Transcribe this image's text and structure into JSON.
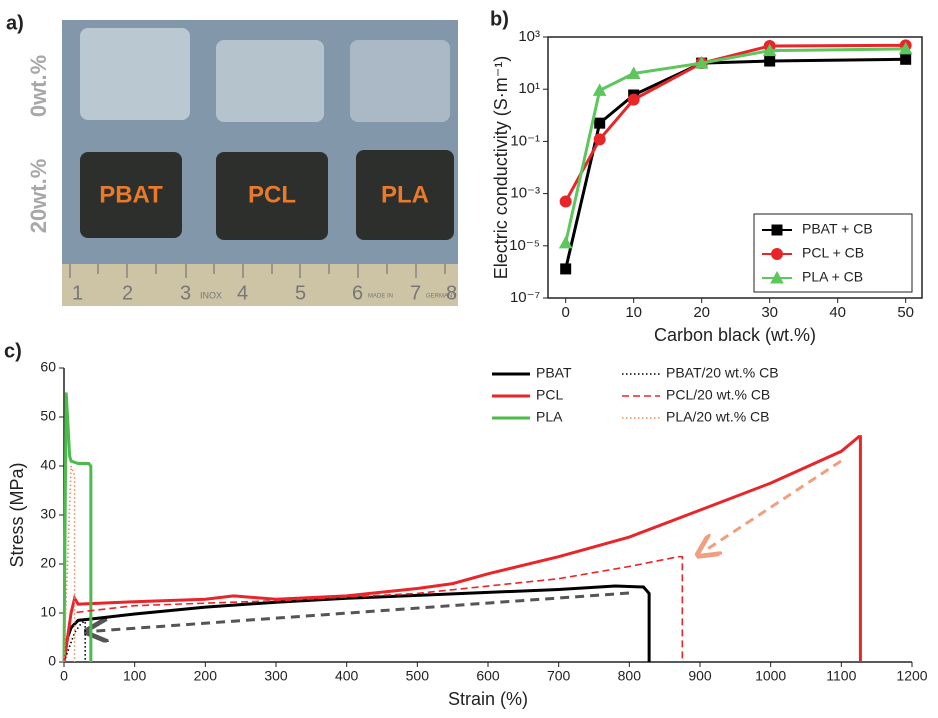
{
  "photo": {
    "label": "a)",
    "row_labels": [
      "0wt.%",
      "20wt.%"
    ],
    "sample_labels": [
      "PBAT",
      "PCL",
      "PLA"
    ],
    "ruler_labels": [
      "1",
      "2",
      "3",
      "4",
      "5",
      "6",
      "7",
      "8"
    ],
    "ruler_marks": [
      "INOX",
      "MADE IN",
      "GERMANY"
    ]
  },
  "chart_data": [
    {
      "type": "line",
      "panel_label": "b)",
      "x_label": "Carbon black (wt.%)",
      "y_label": "Electric conductivity (S·m⁻¹)",
      "log_y": true,
      "legend": "lower right",
      "frame": true,
      "x": [
        0,
        5,
        10,
        20,
        30,
        50
      ],
      "xlim": [
        -2.6,
        52.4
      ],
      "xticks": [
        0,
        10,
        20,
        30,
        40,
        50
      ],
      "ylim": [
        1e-07,
        1000
      ],
      "yticks": [
        {
          "value": 1e-07,
          "label": "10⁻⁷"
        },
        {
          "value": 1e-05,
          "label": "10⁻⁵"
        },
        {
          "value": 0.001,
          "label": "10⁻³"
        },
        {
          "value": 0.1,
          "label": "10⁻¹"
        },
        {
          "value": 10,
          "label": "10¹"
        },
        {
          "value": 1000,
          "label": "10³"
        }
      ],
      "series": [
        {
          "name": "PBAT + CB",
          "color": "#000000",
          "marker": "square",
          "values": [
            1.3e-06,
            0.5,
            6,
            100,
            120,
            140
          ]
        },
        {
          "name": "PCL + CB",
          "color": "#e8262a",
          "marker": "circle",
          "values": [
            0.0005,
            0.12,
            4,
            100,
            450,
            480
          ]
        },
        {
          "name": "PLA + CB",
          "color": "#5dc65d",
          "marker": "triangle",
          "values": [
            1.3e-05,
            9,
            40,
            100,
            300,
            350
          ]
        }
      ]
    },
    {
      "type": "line",
      "panel_label": "c)",
      "x_label": "Strain (%)",
      "y_label": "Stress (MPa)",
      "log_y": false,
      "legend": "upper right",
      "frame": false,
      "xlim": [
        0,
        1200
      ],
      "xticks": [
        0,
        100,
        200,
        300,
        400,
        500,
        600,
        700,
        800,
        900,
        1000,
        1100,
        1200
      ],
      "ylim": [
        0,
        60
      ],
      "yticks": [
        0,
        10,
        20,
        30,
        40,
        50,
        60
      ],
      "series": [
        {
          "name": "PBAT",
          "color": "#000000",
          "dash": "solid",
          "x": [
            0,
            5,
            10,
            20,
            40,
            100,
            200,
            300,
            400,
            500,
            600,
            700,
            780,
            820,
            828,
            828
          ],
          "values": [
            0,
            5,
            7,
            8.5,
            8.8,
            9.8,
            11.2,
            12.2,
            13,
            13.6,
            14.2,
            14.8,
            15.5,
            15.3,
            14,
            0
          ]
        },
        {
          "name": "PCL",
          "color": "#e8262a",
          "dash": "solid",
          "x": [
            0,
            10,
            15,
            20,
            50,
            100,
            200,
            240,
            300,
            400,
            500,
            550,
            600,
            700,
            800,
            900,
            1000,
            1100,
            1125,
            1127,
            1127
          ],
          "values": [
            0,
            10,
            13,
            11.8,
            12,
            12.3,
            12.8,
            13.5,
            12.8,
            13.5,
            15,
            16,
            18,
            21.5,
            25.5,
            31,
            36.5,
            43,
            46,
            46,
            0
          ]
        },
        {
          "name": "PLA",
          "color": "#4cbb4c",
          "dash": "solid",
          "x": [
            0,
            3,
            5,
            8,
            10,
            20,
            30,
            35,
            38,
            38
          ],
          "values": [
            0,
            55,
            50,
            42,
            41,
            40.5,
            40.5,
            40.5,
            40,
            0
          ]
        },
        {
          "name": "PBAT/20 wt.% CB",
          "color": "#000000",
          "dash": "dotted",
          "x": [
            0,
            15,
            25,
            30,
            30
          ],
          "values": [
            0,
            6,
            8,
            8.3,
            0
          ]
        },
        {
          "name": "PCL/20 wt.% CB",
          "color": "#e8262a",
          "dash": "dashed",
          "x": [
            0,
            10,
            100,
            300,
            500,
            700,
            800,
            870,
            875,
            875
          ],
          "values": [
            0,
            10,
            11.5,
            12.5,
            14,
            17,
            19.5,
            21.5,
            21.5,
            0
          ]
        },
        {
          "name": "PLA/20 wt.% CB",
          "color": "#f08a5a",
          "dash": "dotted",
          "x": [
            0,
            5,
            10,
            15,
            15
          ],
          "values": [
            0,
            20,
            40,
            38,
            0
          ]
        }
      ]
    }
  ]
}
